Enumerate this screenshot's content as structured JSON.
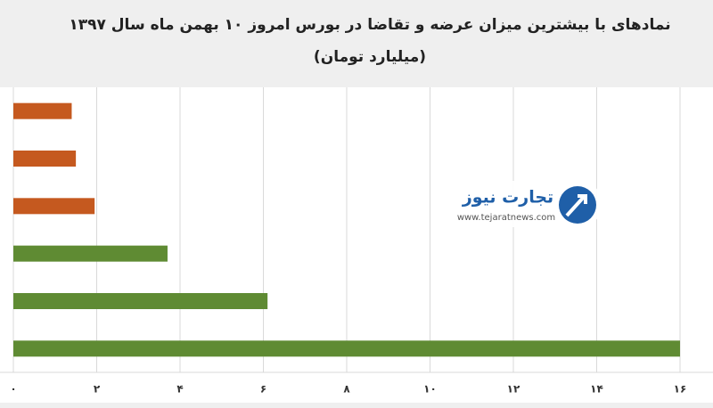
{
  "chart_data": {
    "type": "hbar",
    "title": "نمادهای با بیشترین میزان عرضه و تقاضا در بورس امروز ۱۰ بهمن ماه سال ۱۳۹۷",
    "subtitle": "(میلیارد تومان)",
    "categories": [
      null,
      null,
      null,
      null,
      null,
      null
    ],
    "values": [
      1.4,
      1.5,
      1.95,
      3.7,
      6.1,
      16.0
    ],
    "colors": [
      "#c5591f",
      "#c5591f",
      "#c5591f",
      "#5f8b33",
      "#5f8b33",
      "#5f8b33"
    ],
    "xlim": [
      0,
      16
    ],
    "xticks": [
      {
        "value": 0,
        "label": "۰"
      },
      {
        "value": 2,
        "label": "۲"
      },
      {
        "value": 4,
        "label": "۴"
      },
      {
        "value": 6,
        "label": "۶"
      },
      {
        "value": 8,
        "label": "۸"
      },
      {
        "value": 10,
        "label": "۱۰"
      },
      {
        "value": 12,
        "label": "۱۲"
      },
      {
        "value": 14,
        "label": "۱۴"
      },
      {
        "value": 16,
        "label": "۱۶"
      }
    ],
    "grid": true,
    "watermark": {
      "brand": "تجارت نیوز",
      "url": "www.tejaratnews.com"
    }
  }
}
